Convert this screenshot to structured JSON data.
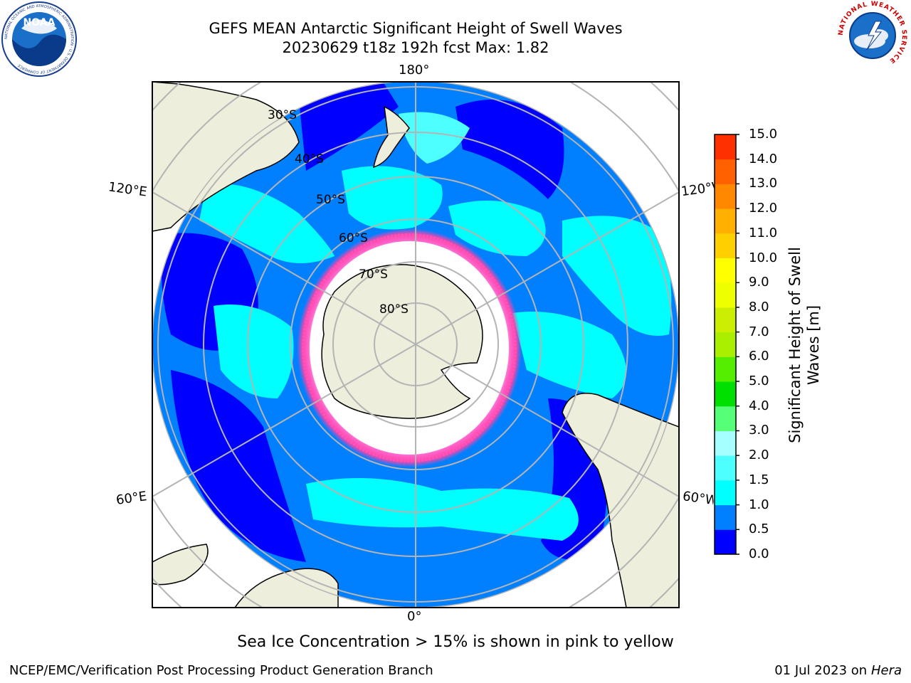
{
  "title": {
    "line1": "GEFS MEAN Antarctic Significant Height of Swell Waves",
    "line2": "20230629 t18z 192h fcst   Max: 1.82"
  },
  "map": {
    "projection": "south-polar-stereographic",
    "longitude_labels": {
      "top": "180°",
      "bottom": "0°",
      "left_upper": "120°E",
      "left_lower": "60°E",
      "right_upper": "120°W",
      "right_lower": "60°W"
    },
    "latitude_labels": [
      "30°S",
      "40°S",
      "50°S",
      "60°S",
      "70°S",
      "80°S"
    ],
    "colors": {
      "land": "#eeeedc",
      "grid": "#b4b4b4",
      "ice_free_background": "#ffffff"
    },
    "ice_edge_note": "pink to yellow"
  },
  "colorbar": {
    "label": "Significant Height of Swell Waves [m]",
    "ticks": [
      "0.0",
      "0.5",
      "1.0",
      "1.5",
      "2.0",
      "3.0",
      "4.0",
      "5.0",
      "6.0",
      "7.0",
      "8.0",
      "9.0",
      "10.0",
      "11.0",
      "12.0",
      "13.0",
      "14.0",
      "15.0"
    ],
    "colors": [
      "#0000ff",
      "#0080ff",
      "#00ffff",
      "#4dffff",
      "#a5ffff",
      "#55ff77",
      "#00e000",
      "#55ee00",
      "#aaee00",
      "#ccee00",
      "#eeff00",
      "#ffff00",
      "#ffd000",
      "#ffb000",
      "#ff8800",
      "#ff6000",
      "#ff3000",
      "#ff0000"
    ]
  },
  "caption": "Sea Ice Concentration > 15% is shown in pink to yellow",
  "footer": {
    "left": "NCEP/EMC/Verification Post Processing Product Generation Branch",
    "right_date": "01 Jul 2023 on ",
    "right_host": "Hera"
  },
  "logos": {
    "noaa": "NOAA",
    "noaa_ring": "NATIONAL OCEANIC AND ATMOSPHERIC ADMINISTRATION · U.S. DEPARTMENT OF COMMERCE",
    "nws": "NATIONAL WEATHER SERVICE"
  }
}
